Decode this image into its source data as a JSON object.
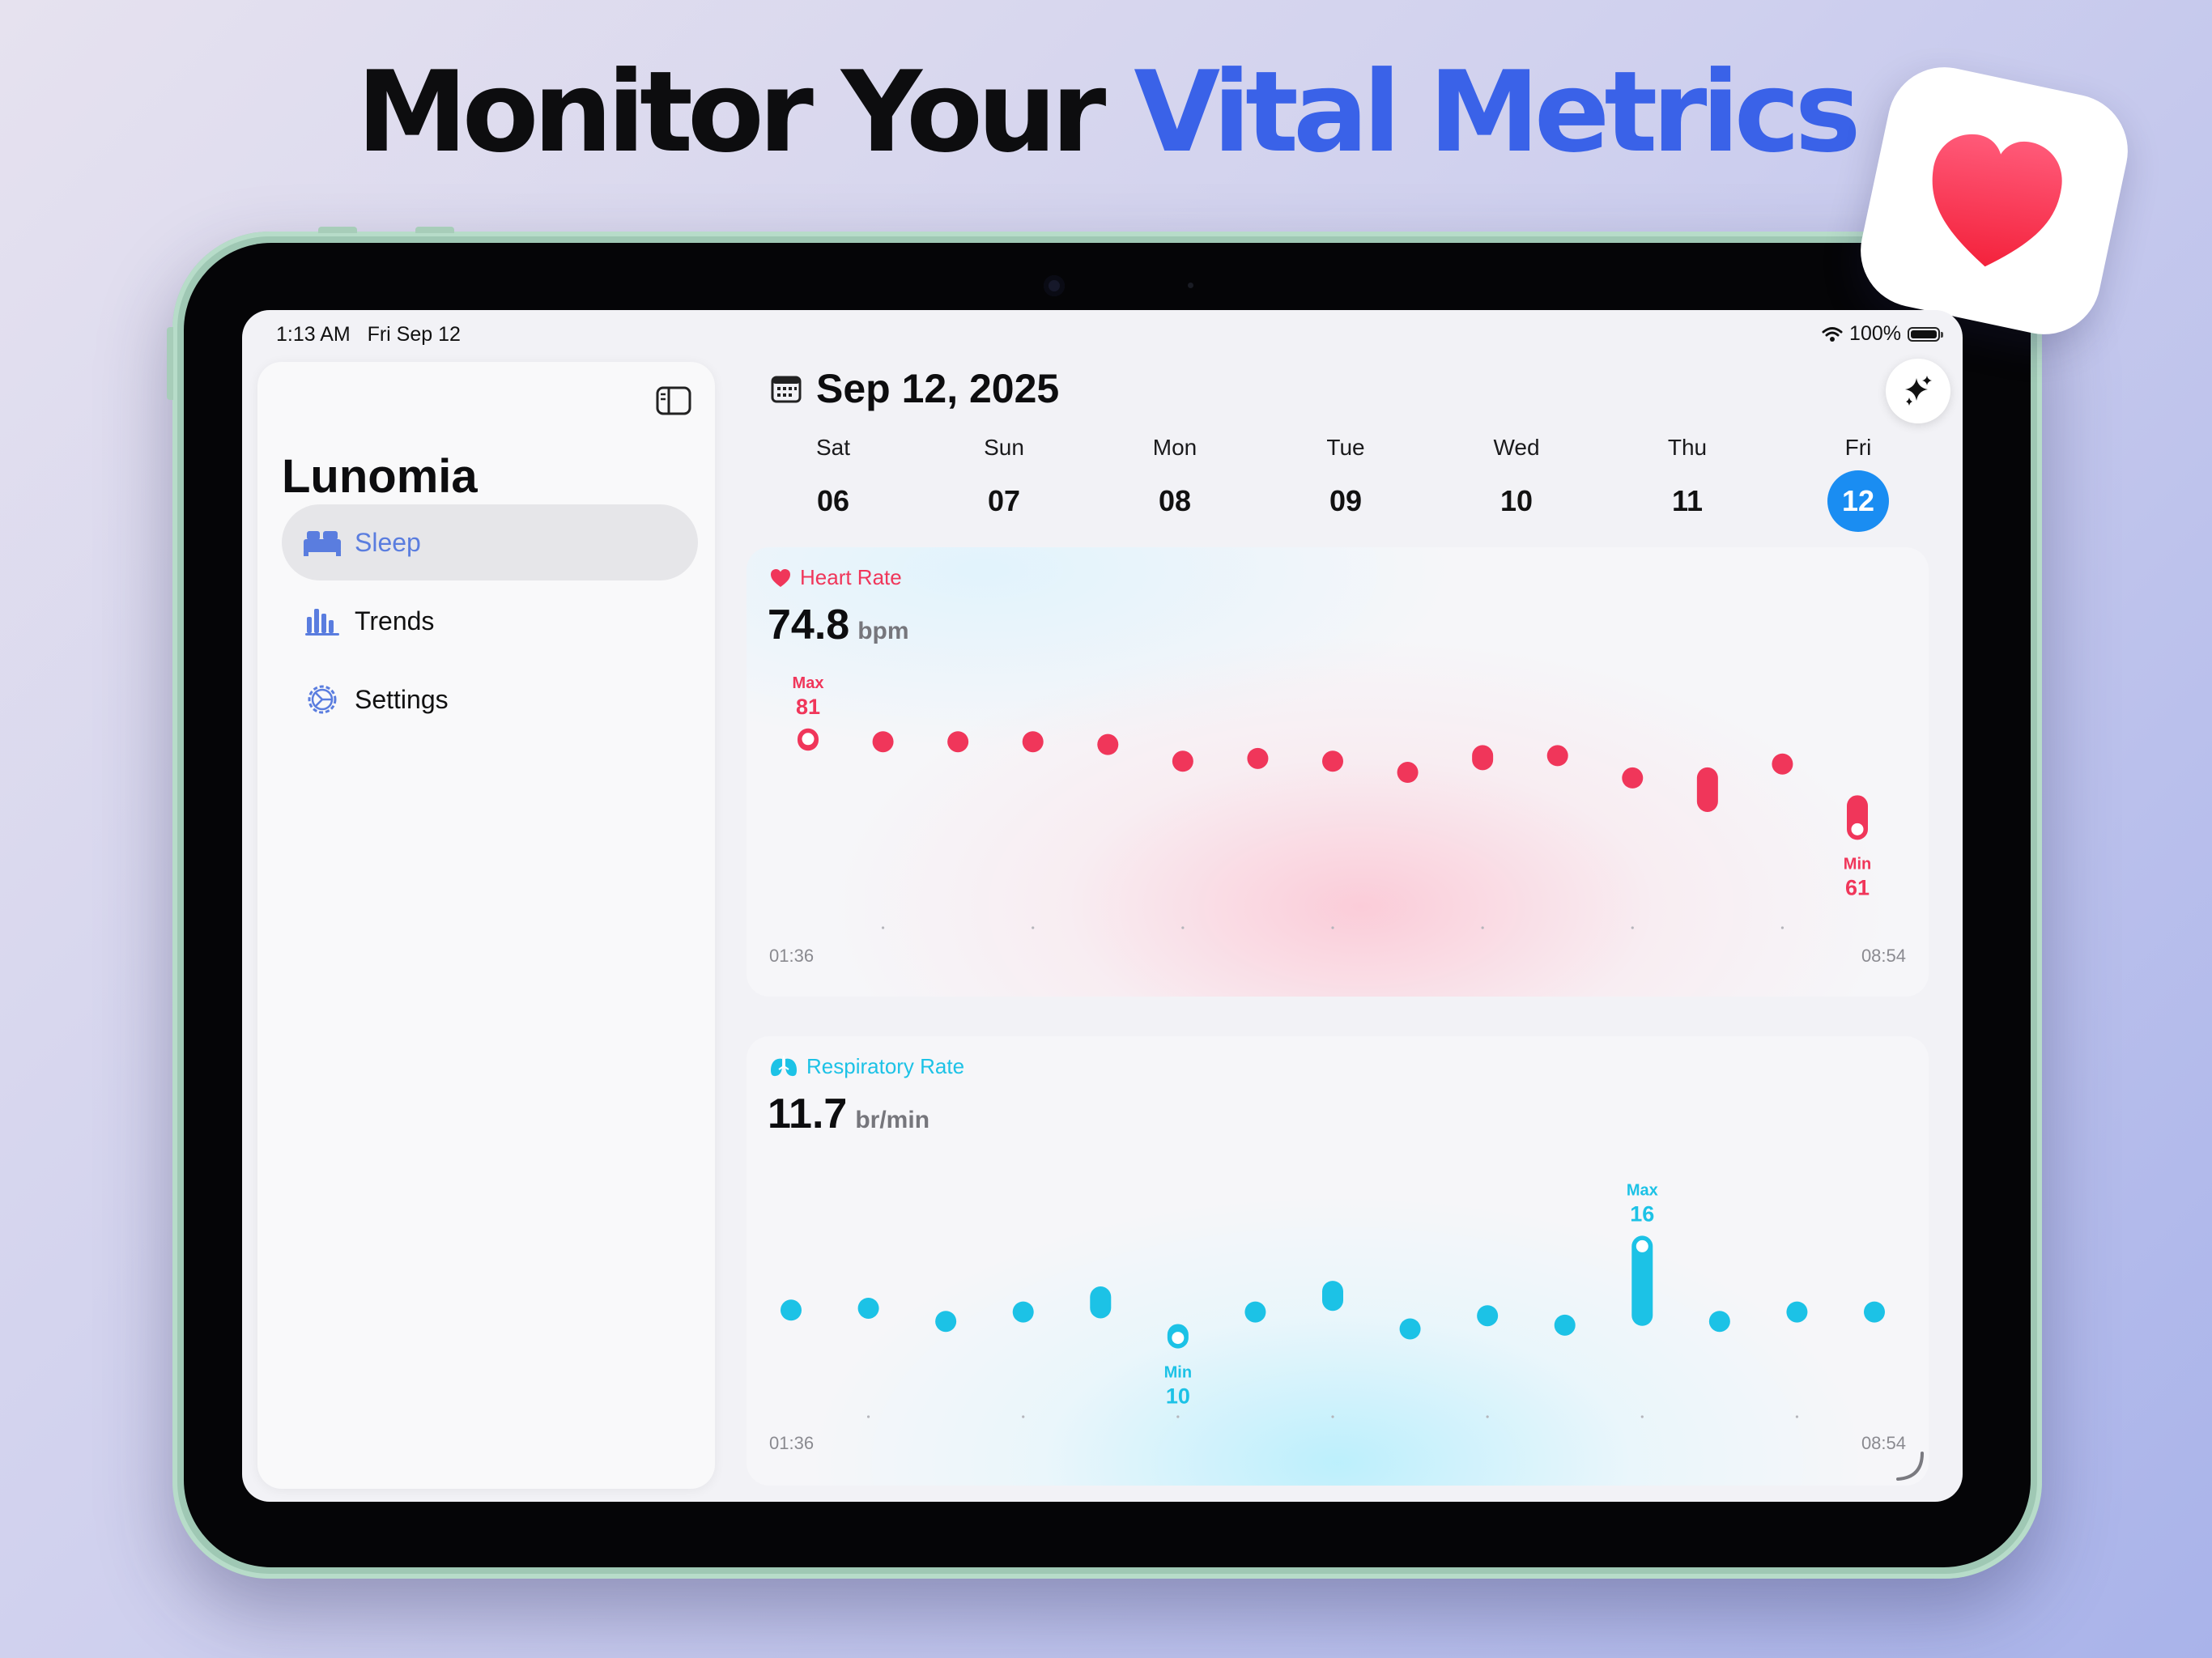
{
  "headline": {
    "part1": "Monitor Your",
    "part2": "Vital Metrics"
  },
  "status": {
    "time": "1:13 AM",
    "date": "Fri Sep 12",
    "battery": "100%"
  },
  "sidebar": {
    "app_title": "Lunomia",
    "items": [
      {
        "label": "Sleep",
        "icon": "bed-icon",
        "active": true
      },
      {
        "label": "Trends",
        "icon": "chart-bars-icon",
        "active": false
      },
      {
        "label": "Settings",
        "icon": "gear-icon",
        "active": false
      }
    ]
  },
  "header": {
    "date_title": "Sep 12, 2025"
  },
  "week": [
    {
      "day": "Sat",
      "num": "06"
    },
    {
      "day": "Sun",
      "num": "07"
    },
    {
      "day": "Mon",
      "num": "08"
    },
    {
      "day": "Tue",
      "num": "09"
    },
    {
      "day": "Wed",
      "num": "10"
    },
    {
      "day": "Thu",
      "num": "11"
    },
    {
      "day": "Fri",
      "num": "12",
      "selected": true
    }
  ],
  "heart_rate": {
    "label": "Heart Rate",
    "value": "74.8",
    "unit": "bpm",
    "color": "#f0365a",
    "start_time": "01:36",
    "end_time": "08:54",
    "max_label": "Max",
    "max_value": "81",
    "min_label": "Min",
    "min_value": "61"
  },
  "respiratory_rate": {
    "label": "Respiratory Rate",
    "value": "11.7",
    "unit": "br/min",
    "color": "#1cc2e6",
    "start_time": "01:36",
    "end_time": "08:54",
    "max_label": "Max",
    "max_value": "16",
    "min_label": "Min",
    "min_value": "10"
  },
  "chart_data": [
    {
      "type": "bar",
      "title": "Heart Rate",
      "unit": "bpm",
      "x_range": [
        "01:36",
        "08:54"
      ],
      "ylim": [
        58,
        83
      ],
      "series": [
        {
          "name": "Heart Rate",
          "ranges": [
            [
              77,
              81
            ],
            [
              78,
              80.5
            ],
            [
              78.5,
              80.5
            ],
            [
              78.5,
              80.5
            ],
            [
              76.5,
              80
            ],
            [
              75,
              77
            ],
            [
              75.5,
              77.5
            ],
            [
              74,
              77
            ],
            [
              73,
              75
            ],
            [
              73.5,
              78
            ],
            [
              75,
              78
            ],
            [
              71,
              74
            ],
            [
              66,
              74
            ],
            [
              74.5,
              76.5
            ],
            [
              61,
              69
            ]
          ]
        }
      ]
    },
    {
      "type": "bar",
      "title": "Respiratory Rate",
      "unit": "br/min",
      "x_range": [
        "01:36",
        "08:54"
      ],
      "ylim": [
        8,
        18
      ],
      "series": [
        {
          "name": "Respiratory Rate",
          "ranges": [
            [
              11.9,
              12.6
            ],
            [
              12,
              12.7
            ],
            [
              11.3,
              12
            ],
            [
              11.8,
              12.5
            ],
            [
              11.6,
              13.3
            ],
            [
              10,
              11.3
            ],
            [
              11.8,
              12.5
            ],
            [
              12,
              13.6
            ],
            [
              10.9,
              11.6
            ],
            [
              11.6,
              12.3
            ],
            [
              10.9,
              11.8
            ],
            [
              11.2,
              16
            ],
            [
              11.3,
              12
            ],
            [
              11.8,
              12.5
            ],
            [
              11.8,
              12.5
            ]
          ]
        }
      ]
    }
  ]
}
